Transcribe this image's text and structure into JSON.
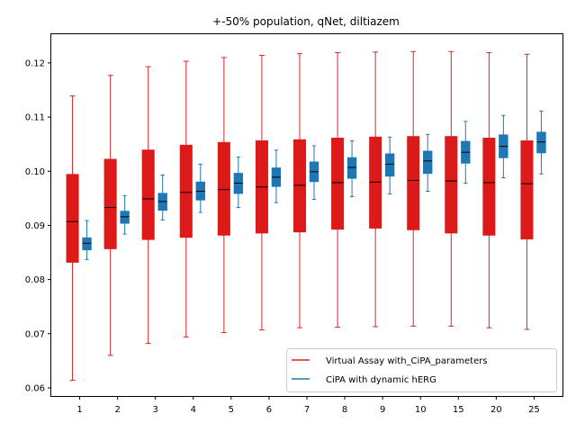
{
  "chart_data": {
    "type": "box",
    "title": "+-50% population, qNet, diltiazem",
    "xlabel": "",
    "ylabel": "",
    "categories": [
      "1",
      "2",
      "3",
      "4",
      "5",
      "6",
      "7",
      "8",
      "9",
      "10",
      "15",
      "20",
      "25"
    ],
    "ylim": [
      0.0585,
      0.1253
    ],
    "yticks": [
      0.06,
      0.07,
      0.08,
      0.09,
      0.1,
      0.11,
      0.12
    ],
    "ytick_labels": [
      "0.06",
      "0.07",
      "0.08",
      "0.09",
      "0.10",
      "0.11",
      "0.12"
    ],
    "grid": false,
    "legend_position": "lower-right",
    "series": [
      {
        "name": "Virtual Assay with_CiPA_parameters",
        "color": "#d62728",
        "fill": "#dc1a1a",
        "boxes": [
          {
            "whislo": 0.0614,
            "q1": 0.0832,
            "med": 0.0907,
            "q3": 0.0994,
            "whishi": 0.1139
          },
          {
            "whislo": 0.066,
            "q1": 0.0857,
            "med": 0.0933,
            "q3": 0.1022,
            "whishi": 0.1177
          },
          {
            "whislo": 0.0682,
            "q1": 0.0874,
            "med": 0.0949,
            "q3": 0.1039,
            "whishi": 0.1193
          },
          {
            "whislo": 0.0694,
            "q1": 0.0878,
            "med": 0.0961,
            "q3": 0.1048,
            "whishi": 0.1203
          },
          {
            "whislo": 0.0702,
            "q1": 0.0882,
            "med": 0.0966,
            "q3": 0.1053,
            "whishi": 0.121
          },
          {
            "whislo": 0.0707,
            "q1": 0.0886,
            "med": 0.0971,
            "q3": 0.1056,
            "whishi": 0.1214
          },
          {
            "whislo": 0.0711,
            "q1": 0.0888,
            "med": 0.0974,
            "q3": 0.1058,
            "whishi": 0.1217
          },
          {
            "whislo": 0.0712,
            "q1": 0.0893,
            "med": 0.0979,
            "q3": 0.1061,
            "whishi": 0.1219
          },
          {
            "whislo": 0.0713,
            "q1": 0.0895,
            "med": 0.098,
            "q3": 0.1063,
            "whishi": 0.122
          },
          {
            "whislo": 0.0714,
            "q1": 0.0892,
            "med": 0.0983,
            "q3": 0.1064,
            "whishi": 0.1221
          },
          {
            "whislo": 0.0714,
            "q1": 0.0886,
            "med": 0.0982,
            "q3": 0.1064,
            "whishi": 0.1221
          },
          {
            "whislo": 0.0711,
            "q1": 0.0882,
            "med": 0.0979,
            "q3": 0.1061,
            "whishi": 0.1219
          },
          {
            "whislo": 0.0708,
            "q1": 0.0875,
            "med": 0.0977,
            "q3": 0.1056,
            "whishi": 0.1216
          }
        ]
      },
      {
        "name": "CiPA with dynamic hERG",
        "color": "#1f77b4",
        "fill": "#1f77b4",
        "boxes": [
          {
            "whislo": 0.0837,
            "q1": 0.0855,
            "med": 0.0867,
            "q3": 0.0877,
            "whishi": 0.0909
          },
          {
            "whislo": 0.0884,
            "q1": 0.0904,
            "med": 0.0916,
            "q3": 0.0926,
            "whishi": 0.0955
          },
          {
            "whislo": 0.091,
            "q1": 0.0928,
            "med": 0.0944,
            "q3": 0.0959,
            "whishi": 0.0993
          },
          {
            "whislo": 0.0924,
            "q1": 0.0947,
            "med": 0.0963,
            "q3": 0.098,
            "whishi": 0.1013
          },
          {
            "whislo": 0.0933,
            "q1": 0.0959,
            "med": 0.0978,
            "q3": 0.0996,
            "whishi": 0.1026
          },
          {
            "whislo": 0.0942,
            "q1": 0.0972,
            "med": 0.0989,
            "q3": 0.1006,
            "whishi": 0.1039
          },
          {
            "whislo": 0.0948,
            "q1": 0.0981,
            "med": 0.0999,
            "q3": 0.1017,
            "whishi": 0.1047
          },
          {
            "whislo": 0.0953,
            "q1": 0.0987,
            "med": 0.1007,
            "q3": 0.1025,
            "whishi": 0.1056
          },
          {
            "whislo": 0.0958,
            "q1": 0.0991,
            "med": 0.1013,
            "q3": 0.1032,
            "whishi": 0.1063
          },
          {
            "whislo": 0.0963,
            "q1": 0.0996,
            "med": 0.1019,
            "q3": 0.1037,
            "whishi": 0.1068
          },
          {
            "whislo": 0.0978,
            "q1": 0.1015,
            "med": 0.1035,
            "q3": 0.1055,
            "whishi": 0.1092
          },
          {
            "whislo": 0.0988,
            "q1": 0.1025,
            "med": 0.1046,
            "q3": 0.1067,
            "whishi": 0.1103
          },
          {
            "whislo": 0.0995,
            "q1": 0.1034,
            "med": 0.1054,
            "q3": 0.1072,
            "whishi": 0.1111
          }
        ]
      }
    ]
  }
}
